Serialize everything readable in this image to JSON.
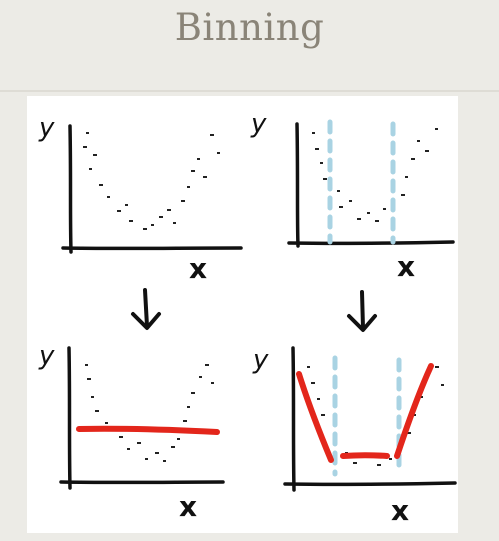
{
  "slide": {
    "title": "Binning"
  },
  "panels": [
    {
      "id": "scatter-left",
      "y_label": "y",
      "x_label": "x",
      "bin_lines": 0,
      "fit": "none"
    },
    {
      "id": "scatter-binned",
      "y_label": "y",
      "x_label": "x",
      "bin_lines": 2,
      "fit": "none"
    },
    {
      "id": "constant-fit",
      "y_label": "y",
      "x_label": "x",
      "bin_lines": 0,
      "fit": "constant"
    },
    {
      "id": "piecewise-fit",
      "y_label": "y",
      "x_label": "x",
      "bin_lines": 2,
      "fit": "piecewise-linear"
    }
  ],
  "arrows": [
    {
      "icon": "down-arrow-icon"
    },
    {
      "icon": "down-arrow-icon"
    }
  ],
  "colors": {
    "background": "#ecebe6",
    "title": "#8a8478",
    "ink": "#111111",
    "fit_line": "#e3261b",
    "bin_divider": "#a9d3e3"
  }
}
